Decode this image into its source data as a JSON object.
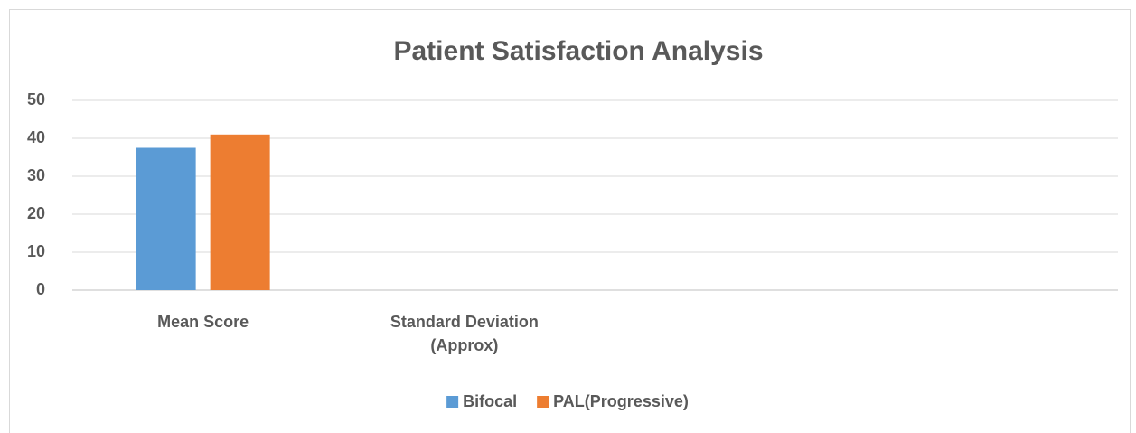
{
  "chart_data": {
    "type": "bar",
    "title": "Patient Satisfaction Analysis",
    "categories": [
      "Mean Score",
      "Standard Deviation (Approx)",
      null,
      null
    ],
    "series": [
      {
        "name": "Bifocal",
        "color": "#5b9bd5",
        "values": [
          37.5,
          null,
          null,
          null
        ]
      },
      {
        "name": "PAL(Progressive)",
        "color": "#ed7d31",
        "values": [
          41,
          null,
          null,
          null
        ]
      }
    ],
    "ylim": [
      0,
      50
    ],
    "yticks": [
      0,
      10,
      20,
      30,
      40,
      50
    ],
    "grid": true,
    "legend": "bottom"
  }
}
